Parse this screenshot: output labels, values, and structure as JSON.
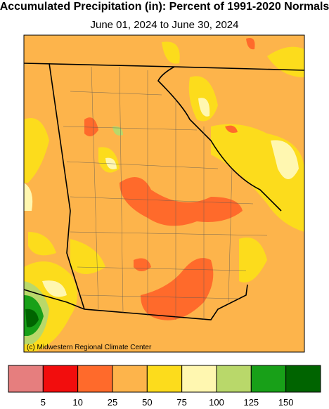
{
  "header": {
    "title": "Accumulated Precipitation (in): Percent of 1991-2020 Normals",
    "subtitle": "June 01, 2024 to June 30, 2024"
  },
  "map": {
    "credit": "(c) Midwestern Regional Climate Center"
  },
  "legend": {
    "colors": [
      "#e67e7e",
      "#f20d0d",
      "#ff6a2b",
      "#fdb44b",
      "#fcdc1c",
      "#fff7b0",
      "#b9d86a",
      "#18a018",
      "#006400"
    ],
    "labels": [
      5,
      10,
      25,
      50,
      75,
      100,
      125,
      150
    ]
  }
}
